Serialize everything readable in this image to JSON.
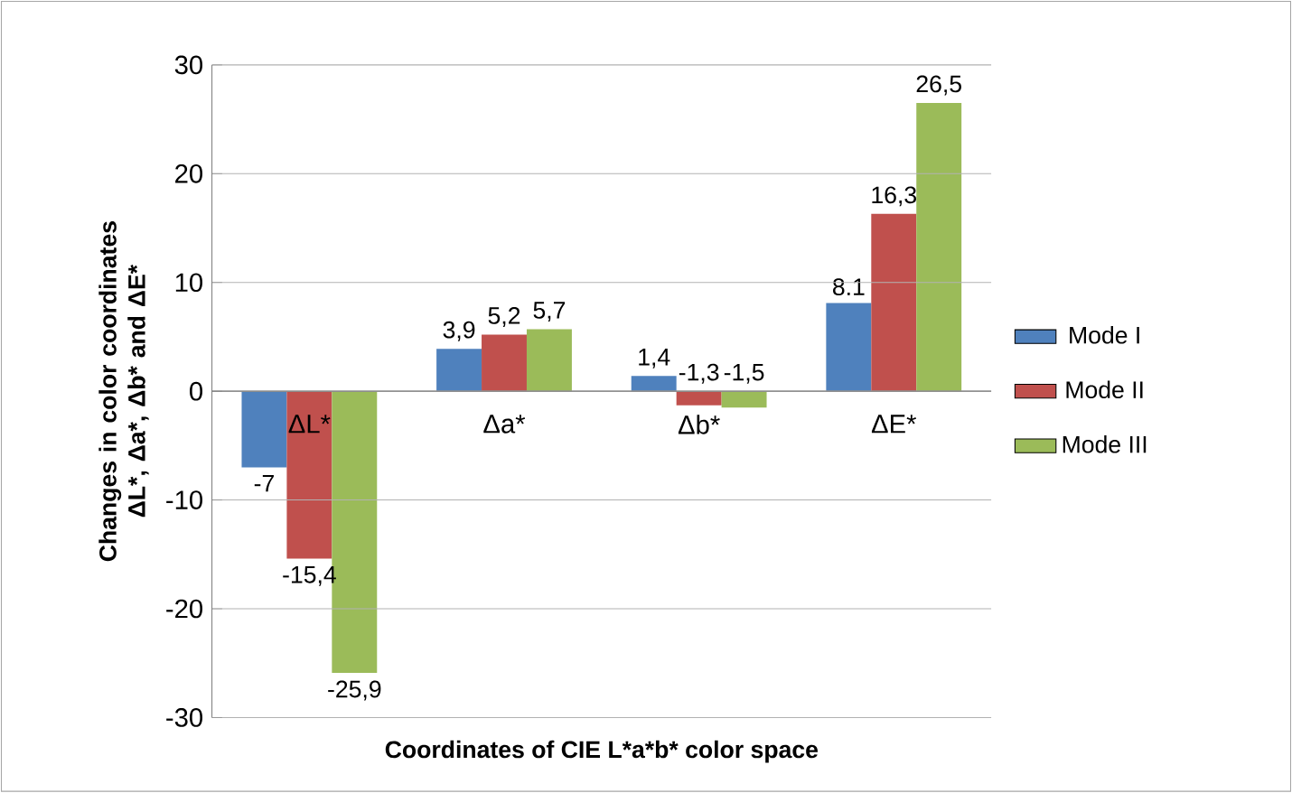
{
  "chart_data": {
    "type": "bar",
    "xlabel": "Coordinates of CIE L*a*b* color space",
    "ylabel": "Changes in color coordinates ΔL*, Δa*, Δb* and ΔE*",
    "categories": [
      "ΔL*",
      "Δa*",
      "Δb*",
      "ΔE*"
    ],
    "series": [
      {
        "name": "Mode I",
        "color": "#4f81bd",
        "values": [
          -7,
          3.9,
          1.4,
          8.1
        ],
        "value_labels": [
          "-7",
          "3,9",
          "1,4",
          "8.1"
        ]
      },
      {
        "name": "Mode II",
        "color": "#c0504d",
        "values": [
          -15.4,
          5.2,
          -1.3,
          16.3
        ],
        "value_labels": [
          "-15,4",
          "5,2",
          "-1,3",
          "16,3"
        ]
      },
      {
        "name": "Mode III",
        "color": "#9bbb59",
        "values": [
          -25.9,
          5.7,
          -1.5,
          26.5
        ],
        "value_labels": [
          "-25,9",
          "5,7",
          "-1,5",
          "26,5"
        ]
      }
    ],
    "ylim": [
      -30,
      30
    ],
    "yticks": [
      -30,
      -20,
      -10,
      0,
      10,
      20,
      30
    ],
    "grid": "y",
    "legend": "right"
  }
}
